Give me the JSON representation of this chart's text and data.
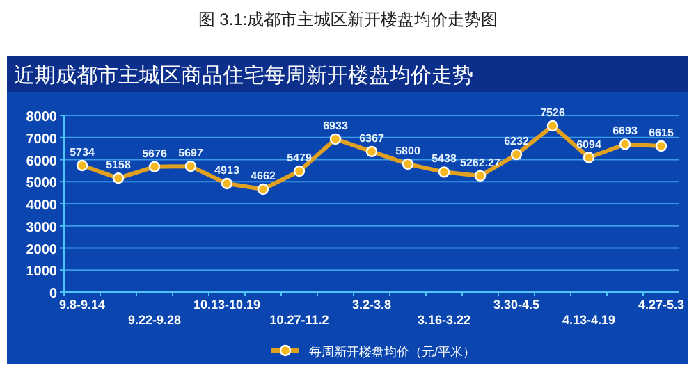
{
  "chart_data": {
    "type": "line",
    "title": "图 3.1:成都市主城区新开楼盘均价走势图",
    "subtitle": "近期成都市主城区商品住宅每周新开楼盘均价走势",
    "categories": [
      "9.8-9.14",
      null,
      "9.22-9.28",
      null,
      "10.13-10.19",
      null,
      "10.27-11.2",
      null,
      "3.2-3.8",
      null,
      "3.16-3.22",
      null,
      "3.30-4.5",
      null,
      "4.13-4.19",
      null,
      "4.27-5.3"
    ],
    "series": [
      {
        "name": "每周新开楼盘均价（元/平米）",
        "color": "#e0a020",
        "values": [
          5734,
          5158,
          5676,
          5697,
          4913,
          4662,
          5479,
          6933,
          6367,
          5800,
          5438,
          5262.27,
          6232,
          7526,
          6094,
          6693,
          6615
        ]
      }
    ],
    "ylim": [
      0,
      8000
    ],
    "yticks": [
      0,
      1000,
      2000,
      3000,
      4000,
      5000,
      6000,
      7000,
      8000
    ],
    "grid": "y",
    "legend": "bottom",
    "marker": "circle",
    "line_style": "solid",
    "data_labels": true
  }
}
